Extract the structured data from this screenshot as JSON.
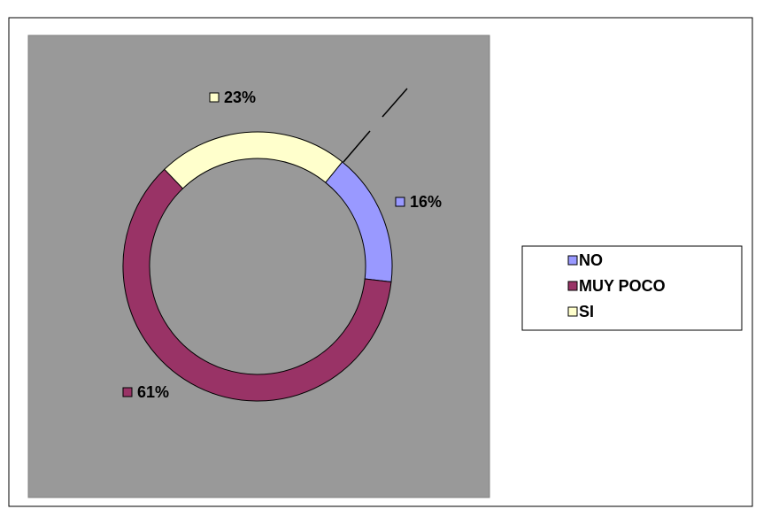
{
  "chart_data": {
    "type": "donut",
    "categories": [
      "NO",
      "MUY POCO",
      "SI"
    ],
    "values": [
      16,
      61,
      23
    ],
    "value_labels": [
      "16%",
      "61%",
      "23%"
    ],
    "colors": [
      "#9999ff",
      "#993366",
      "#ffffcc"
    ],
    "legend": "right"
  }
}
